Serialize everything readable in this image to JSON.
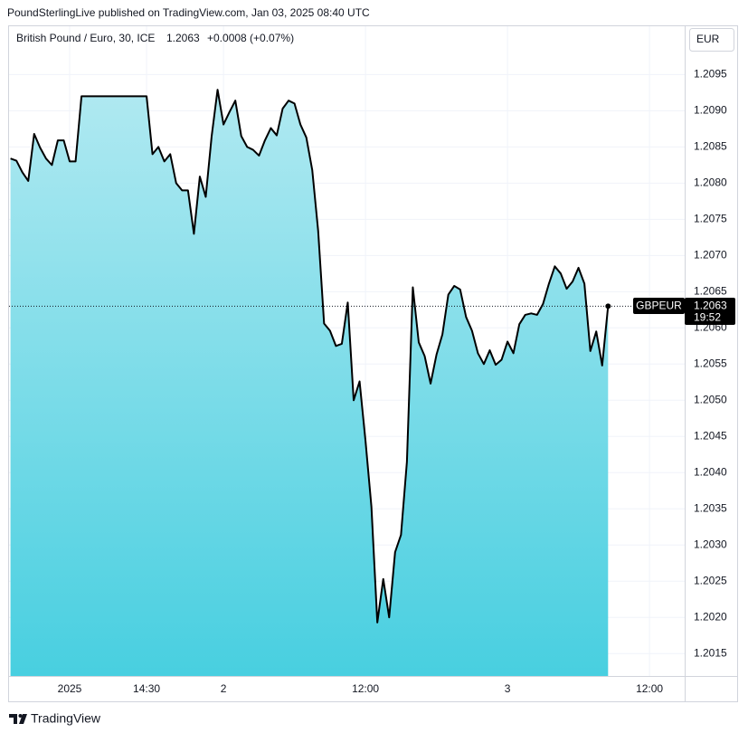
{
  "header": "PoundSterlingLive published on TradingView.com, Jan 03, 2025 08:40 UTC",
  "footer": "TradingView",
  "chart_data": {
    "type": "area",
    "legend": {
      "name": "British Pound / Euro, 30, ICE",
      "price": "1.2063",
      "change": "+0.0008 (+0.07%)"
    },
    "currency": "EUR",
    "price_label": {
      "symbol": "GBPEUR",
      "price": "1.2063",
      "countdown": "19:52"
    },
    "color": "#000000",
    "fill_top": "#b0e9f1",
    "fill_bottom": "#48cfe0",
    "grid": true,
    "categories": [
      null,
      null,
      null,
      null,
      null,
      null,
      null,
      null,
      null,
      null,
      "2025",
      null,
      null,
      null,
      null,
      null,
      null,
      null,
      null,
      null,
      null,
      null,
      null,
      "14:30",
      null,
      null,
      null,
      null,
      null,
      null,
      null,
      null,
      null,
      null,
      null,
      null,
      "2",
      null,
      null,
      null,
      null,
      null,
      null,
      null,
      null,
      null,
      null,
      null,
      null,
      null,
      null,
      null,
      null,
      null,
      null,
      null,
      null,
      null,
      null,
      null,
      "12:00",
      null,
      null,
      null,
      null,
      null,
      null,
      null,
      null,
      null,
      null,
      null,
      null,
      null,
      null,
      null,
      null,
      null,
      null,
      null,
      null,
      null,
      null,
      null,
      "3",
      null,
      null,
      null,
      null,
      null,
      null,
      null,
      null,
      null,
      null,
      null,
      null,
      null,
      null,
      null,
      null,
      null,
      null,
      null,
      null,
      null,
      null,
      null,
      "12:00"
    ],
    "values": [
      1.20834,
      1.20831,
      1.20815,
      1.20803,
      1.20868,
      1.20849,
      1.20834,
      1.20825,
      1.20859,
      1.20859,
      1.2083,
      1.2083,
      1.2092,
      1.2092,
      1.2092,
      1.2092,
      1.2092,
      1.2092,
      1.2092,
      1.2092,
      1.2092,
      1.2092,
      1.2092,
      1.2092,
      1.2084,
      1.2085,
      1.2083,
      1.2084,
      1.208,
      1.2079,
      1.2079,
      1.2073,
      1.20809,
      1.20781,
      1.20865,
      1.20929,
      1.20881,
      1.20898,
      1.20914,
      1.20865,
      1.2085,
      1.20846,
      1.20838,
      1.20859,
      1.20876,
      1.20866,
      1.20903,
      1.20914,
      1.2091,
      1.20881,
      1.20863,
      1.20818,
      1.20734,
      1.20606,
      1.20596,
      1.20575,
      1.20578,
      1.20635,
      1.205,
      1.20526,
      1.20444,
      1.20353,
      1.20193,
      1.20253,
      1.202,
      1.2029,
      1.20314,
      1.20415,
      1.20656,
      1.2058,
      1.20561,
      1.20523,
      1.20563,
      1.20591,
      1.20646,
      1.20658,
      1.20653,
      1.20615,
      1.20596,
      1.20565,
      1.2055,
      1.20569,
      1.20549,
      1.20556,
      1.20581,
      1.20565,
      1.20605,
      1.20618,
      1.2062,
      1.20618,
      1.20633,
      1.20661,
      1.20685,
      1.20675,
      1.20654,
      1.20664,
      1.20683,
      1.20661,
      1.20568,
      1.20595,
      1.20548,
      1.2063,
      null,
      null,
      null,
      null,
      null,
      null,
      null
    ],
    "ylim": [
      1.20119,
      1.21018
    ],
    "yticks": [
      1.2015,
      {
        "value": 1.202,
        "label": "1.2020"
      },
      1.2025,
      {
        "value": 1.203,
        "label": "1.2030"
      },
      1.2035,
      {
        "value": 1.204,
        "label": "1.2040"
      },
      1.2045,
      {
        "value": 1.205,
        "label": "1.2050"
      },
      1.2055,
      {
        "value": 1.206,
        "label": "1.2060"
      },
      1.2065,
      {
        "value": 1.207,
        "label": "1.2070"
      },
      1.2075,
      {
        "value": 1.208,
        "label": "1.2080"
      },
      1.2085,
      {
        "value": 1.209,
        "label": "1.2090"
      },
      1.2095
    ]
  }
}
